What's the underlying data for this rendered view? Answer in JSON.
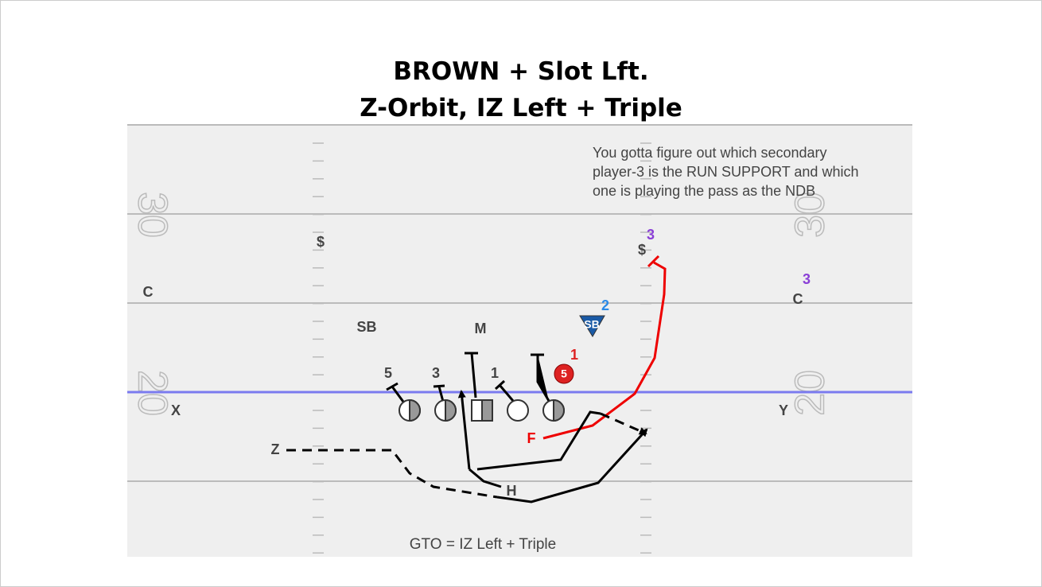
{
  "title": {
    "lines": [
      "BROWN + Slot Lft.",
      "Z-Orbit, IZ Left + Triple"
    ]
  },
  "note": {
    "lines": [
      "You gotta figure out which secondary",
      "player-3 is the RUN SUPPORT and which",
      "one is playing the pass as the NDB"
    ]
  },
  "field": {
    "numbers": [
      "30",
      "20",
      "30",
      "20"
    ]
  },
  "defense": {
    "labels": [
      "$",
      "$",
      "C",
      "C",
      "SB",
      "M",
      "SB"
    ],
    "numbers": [
      "3",
      "3",
      "2",
      "1",
      "5"
    ]
  },
  "line": {
    "numbers": [
      "5",
      "3",
      "1"
    ]
  },
  "offense": {
    "labels": [
      "X",
      "Y",
      "Z",
      "F",
      "H"
    ]
  },
  "footer": {
    "text": "GTO = IZ Left + Triple"
  }
}
